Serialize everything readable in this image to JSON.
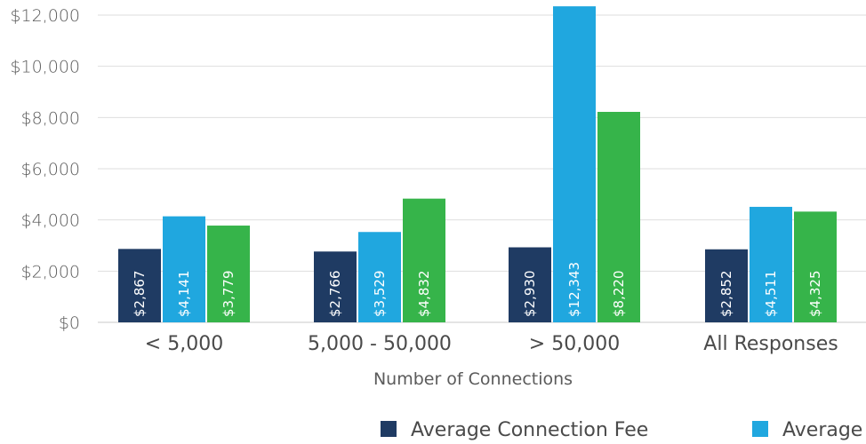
{
  "chart_data": {
    "type": "bar",
    "xlabel": "Number of Connections",
    "ylabel": "",
    "ylim": [
      0,
      12000
    ],
    "y_ticks": [
      "$0",
      "$2,000",
      "$4,000",
      "$6,000",
      "$8,000",
      "$10,000",
      "$12,000"
    ],
    "y_tick_values": [
      0,
      2000,
      4000,
      6000,
      8000,
      10000,
      12000
    ],
    "categories": [
      "< 5,000",
      "5,000 - 50,000",
      "> 50,000",
      "All Responses"
    ],
    "series": [
      {
        "name": "Average Connection Fee",
        "color": "#1f3b63",
        "values": [
          2867,
          2766,
          2930,
          2852
        ],
        "labels": [
          "$2,867",
          "$2,766",
          "$2,930",
          "$2,852"
        ]
      },
      {
        "name": "Average",
        "color": "#20a7df",
        "values": [
          4141,
          3529,
          12343,
          4511
        ],
        "labels": [
          "$4,141",
          "$3,529",
          "$12,343",
          "$4,511"
        ]
      },
      {
        "name": "",
        "color": "#36b44a",
        "values": [
          3779,
          4832,
          8220,
          4325
        ],
        "labels": [
          "$3,779",
          "$4,832",
          "$8,220",
          "$4,325"
        ]
      }
    ],
    "grid": true,
    "legend_position": "bottom"
  }
}
